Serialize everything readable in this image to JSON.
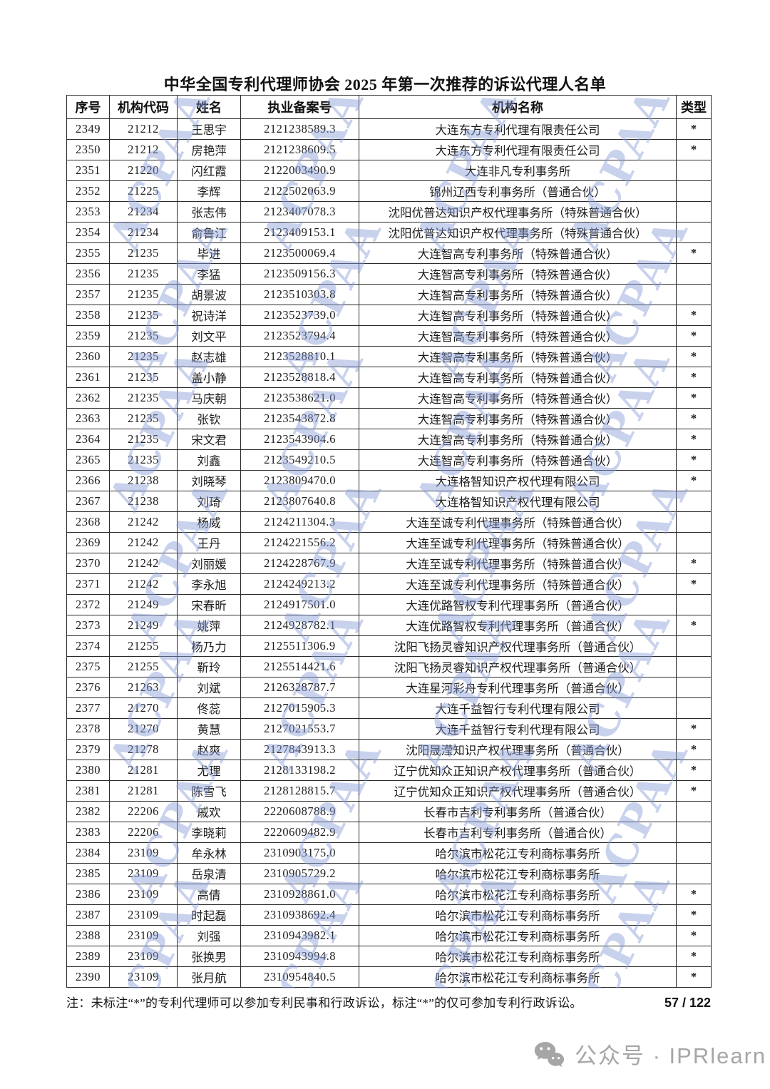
{
  "page": {
    "title": "中华全国专利代理师协会 2025 年第一次推荐的诉讼代理人名单",
    "note": "注：未标注“*”的专利代理师可以参加专利民事和行政诉讼，标注“*”的仅可参加专利行政诉讼。",
    "page_number": "57 / 122",
    "watermark_text": "ACPAA",
    "watermark_color": "#889cd6",
    "social": {
      "icon": "wechat-icon",
      "label": "公众号 · IPRlearn",
      "color": "#a6a6a6"
    }
  },
  "table": {
    "headers": [
      "序号",
      "机构代码",
      "姓名",
      "执业备案号",
      "机构名称",
      "类型"
    ],
    "rows": [
      [
        "2349",
        "21212",
        "王思宇",
        "2121238589.3",
        "大连东方专利代理有限责任公司",
        "*"
      ],
      [
        "2350",
        "21212",
        "房艳萍",
        "2121238609.5",
        "大连东方专利代理有限责任公司",
        "*"
      ],
      [
        "2351",
        "21220",
        "闪红霞",
        "2122003490.9",
        "大连非凡专利事务所",
        ""
      ],
      [
        "2352",
        "21225",
        "李辉",
        "2122502063.9",
        "锦州辽西专利事务所（普通合伙）",
        ""
      ],
      [
        "2353",
        "21234",
        "张志伟",
        "2123407078.3",
        "沈阳优普达知识产权代理事务所（特殊普通合伙）",
        ""
      ],
      [
        "2354",
        "21234",
        "俞鲁江",
        "2123409153.1",
        "沈阳优普达知识产权代理事务所（特殊普通合伙）",
        ""
      ],
      [
        "2355",
        "21235",
        "毕进",
        "2123500069.4",
        "大连智高专利事务所（特殊普通合伙）",
        "*"
      ],
      [
        "2356",
        "21235",
        "李猛",
        "2123509156.3",
        "大连智高专利事务所（特殊普通合伙）",
        ""
      ],
      [
        "2357",
        "21235",
        "胡景波",
        "2123510303.8",
        "大连智高专利事务所（特殊普通合伙）",
        ""
      ],
      [
        "2358",
        "21235",
        "祝诗洋",
        "2123523739.0",
        "大连智高专利事务所（特殊普通合伙）",
        "*"
      ],
      [
        "2359",
        "21235",
        "刘文平",
        "2123523794.4",
        "大连智高专利事务所（特殊普通合伙）",
        "*"
      ],
      [
        "2360",
        "21235",
        "赵志雄",
        "2123528810.1",
        "大连智高专利事务所（特殊普通合伙）",
        "*"
      ],
      [
        "2361",
        "21235",
        "盖小静",
        "2123528818.4",
        "大连智高专利事务所（特殊普通合伙）",
        "*"
      ],
      [
        "2362",
        "21235",
        "马庆朝",
        "2123538621.0",
        "大连智高专利事务所（特殊普通合伙）",
        "*"
      ],
      [
        "2363",
        "21235",
        "张钦",
        "2123543872.8",
        "大连智高专利事务所（特殊普通合伙）",
        "*"
      ],
      [
        "2364",
        "21235",
        "宋文君",
        "2123543904.6",
        "大连智高专利事务所（特殊普通合伙）",
        "*"
      ],
      [
        "2365",
        "21235",
        "刘鑫",
        "2123549210.5",
        "大连智高专利事务所（特殊普通合伙）",
        "*"
      ],
      [
        "2366",
        "21238",
        "刘晓琴",
        "2123809470.0",
        "大连格智知识产权代理有限公司",
        "*"
      ],
      [
        "2367",
        "21238",
        "刘琦",
        "2123807640.8",
        "大连格智知识产权代理有限公司",
        ""
      ],
      [
        "2368",
        "21242",
        "杨威",
        "2124211304.3",
        "大连至诚专利代理事务所（特殊普通合伙）",
        ""
      ],
      [
        "2369",
        "21242",
        "王丹",
        "2124221556.2",
        "大连至诚专利代理事务所（特殊普通合伙）",
        ""
      ],
      [
        "2370",
        "21242",
        "刘丽媛",
        "2124228767.9",
        "大连至诚专利代理事务所（特殊普通合伙）",
        "*"
      ],
      [
        "2371",
        "21242",
        "李永旭",
        "2124249213.2",
        "大连至诚专利代理事务所（特殊普通合伙）",
        "*"
      ],
      [
        "2372",
        "21249",
        "宋春昕",
        "2124917501.0",
        "大连优路智权专利代理事务所（普通合伙）",
        ""
      ],
      [
        "2373",
        "21249",
        "姚萍",
        "2124928782.1",
        "大连优路智权专利代理事务所（普通合伙）",
        "*"
      ],
      [
        "2374",
        "21255",
        "杨乃力",
        "2125511306.9",
        "沈阳飞扬灵睿知识产权代理事务所（普通合伙）",
        ""
      ],
      [
        "2375",
        "21255",
        "靳玲",
        "2125514421.6",
        "沈阳飞扬灵睿知识产权代理事务所（普通合伙）",
        ""
      ],
      [
        "2376",
        "21263",
        "刘斌",
        "2126328787.7",
        "大连星河彩舟专利代理事务所（普通合伙）",
        ""
      ],
      [
        "2377",
        "21270",
        "佟蕊",
        "2127015905.3",
        "大连千益智行专利代理有限公司",
        ""
      ],
      [
        "2378",
        "21270",
        "黄慧",
        "2127021553.7",
        "大连千益智行专利代理有限公司",
        "*"
      ],
      [
        "2379",
        "21278",
        "赵爽",
        "2127843913.3",
        "沈阳晟滢知识产权代理事务所（普通合伙）",
        "*"
      ],
      [
        "2380",
        "21281",
        "尤理",
        "2128133198.2",
        "辽宁优知众正知识产权代理事务所（普通合伙）",
        "*"
      ],
      [
        "2381",
        "21281",
        "陈雪飞",
        "2128128815.7",
        "辽宁优知众正知识产权代理事务所（普通合伙）",
        "*"
      ],
      [
        "2382",
        "22206",
        "戚欢",
        "2220608788.9",
        "长春市吉利专利事务所（普通合伙）",
        ""
      ],
      [
        "2383",
        "22206",
        "李晓莉",
        "2220609482.9",
        "长春市吉利专利事务所（普通合伙）",
        ""
      ],
      [
        "2384",
        "23109",
        "牟永林",
        "2310903175.0",
        "哈尔滨市松花江专利商标事务所",
        ""
      ],
      [
        "2385",
        "23109",
        "岳泉清",
        "2310905729.2",
        "哈尔滨市松花江专利商标事务所",
        ""
      ],
      [
        "2386",
        "23109",
        "高倩",
        "2310928861.0",
        "哈尔滨市松花江专利商标事务所",
        "*"
      ],
      [
        "2387",
        "23109",
        "时起磊",
        "2310938692.4",
        "哈尔滨市松花江专利商标事务所",
        "*"
      ],
      [
        "2388",
        "23109",
        "刘强",
        "2310943982.1",
        "哈尔滨市松花江专利商标事务所",
        "*"
      ],
      [
        "2389",
        "23109",
        "张换男",
        "2310943994.8",
        "哈尔滨市松花江专利商标事务所",
        "*"
      ],
      [
        "2390",
        "23109",
        "张月航",
        "2310954840.5",
        "哈尔滨市松花江专利商标事务所",
        "*"
      ]
    ]
  }
}
